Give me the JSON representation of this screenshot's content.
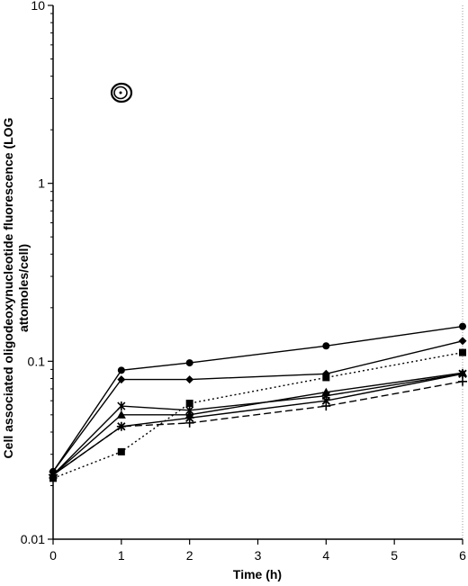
{
  "chart_data": {
    "type": "line",
    "title": "",
    "xlabel": "Time (h)",
    "ylabel_line1": "Cell associated oligodeoxynucleotide fluorescence (LOG",
    "ylabel_line2": "attomoles/cell)",
    "xlim": [
      0,
      6
    ],
    "ylim": [
      0.01,
      10
    ],
    "y_scale": "log",
    "x_ticks": [
      "0",
      "1",
      "2",
      "3",
      "4",
      "5",
      "6"
    ],
    "y_ticks": [
      "0.01",
      "0.1",
      "1",
      "10"
    ],
    "grid": false,
    "legend": "none",
    "series": [
      {
        "marker": "circle",
        "line": "solid",
        "x": [
          0,
          1,
          2,
          4,
          6
        ],
        "y": [
          0.024,
          0.089,
          0.098,
          0.122,
          0.157
        ]
      },
      {
        "marker": "diamond",
        "line": "solid",
        "x": [
          0,
          1,
          2,
          4,
          6
        ],
        "y": [
          0.024,
          0.079,
          0.079,
          0.085,
          0.13
        ]
      },
      {
        "marker": "square",
        "line": "dotted",
        "x": [
          0,
          1,
          2,
          4,
          6
        ],
        "y": [
          0.022,
          0.031,
          0.058,
          0.081,
          0.112
        ]
      },
      {
        "marker": "star",
        "line": "solid",
        "x": [
          0,
          1,
          2,
          4,
          6
        ],
        "y": [
          0.023,
          0.056,
          0.053,
          0.064,
          0.085
        ]
      },
      {
        "marker": "triangle",
        "line": "solid",
        "x": [
          0,
          1,
          2,
          4,
          6
        ],
        "y": [
          0.023,
          0.05,
          0.05,
          0.067,
          0.086
        ]
      },
      {
        "marker": "x",
        "line": "solid",
        "x": [
          0,
          1,
          2,
          4,
          6
        ],
        "y": [
          0.023,
          0.043,
          0.048,
          0.06,
          0.085
        ]
      },
      {
        "marker": "plus",
        "line": "dashed",
        "x": [
          0,
          1,
          2,
          4,
          6
        ],
        "y": [
          0.023,
          0.043,
          0.045,
          0.056,
          0.077
        ]
      }
    ]
  }
}
